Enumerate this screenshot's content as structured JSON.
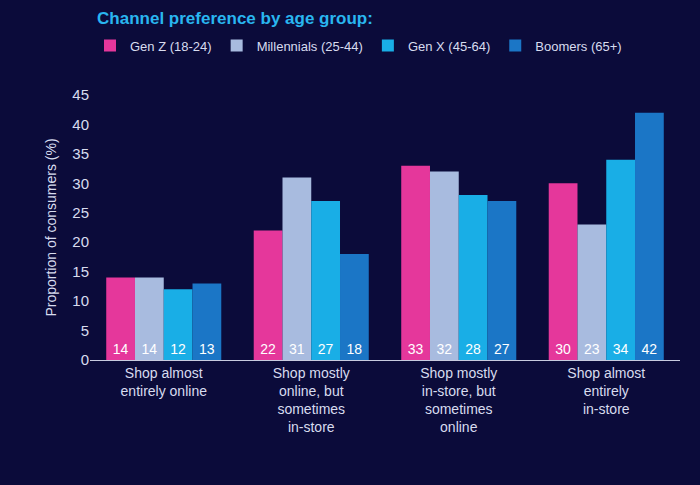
{
  "chart_data": {
    "type": "bar",
    "title": "Channel preference by age group:",
    "y_label": "Proportion of consumers (%)",
    "categories": [
      "Shop almost entirely online",
      "Shop mostly online, but sometimes in-store",
      "Shop mostly in-store, but sometimes online",
      "Shop almost entirely in-store"
    ],
    "series": [
      {
        "name": "Gen Z (18-24)",
        "color": "#e5379b",
        "values": [
          14,
          22,
          33,
          30
        ]
      },
      {
        "name": "Millennials (25-44)",
        "color": "#a8bbdf",
        "values": [
          14,
          31,
          32,
          23
        ]
      },
      {
        "name": "Gen X (45-64)",
        "color": "#19aee6",
        "values": [
          12,
          27,
          28,
          34
        ]
      },
      {
        "name": "Boomers (65+)",
        "color": "#1b76c6",
        "values": [
          13,
          18,
          27,
          42
        ]
      }
    ],
    "ylim": [
      0,
      45
    ],
    "yticks": [
      0,
      5,
      10,
      15,
      20,
      25,
      30,
      35,
      40,
      45
    ],
    "grid": false,
    "legend": "top",
    "data_labels": true
  }
}
